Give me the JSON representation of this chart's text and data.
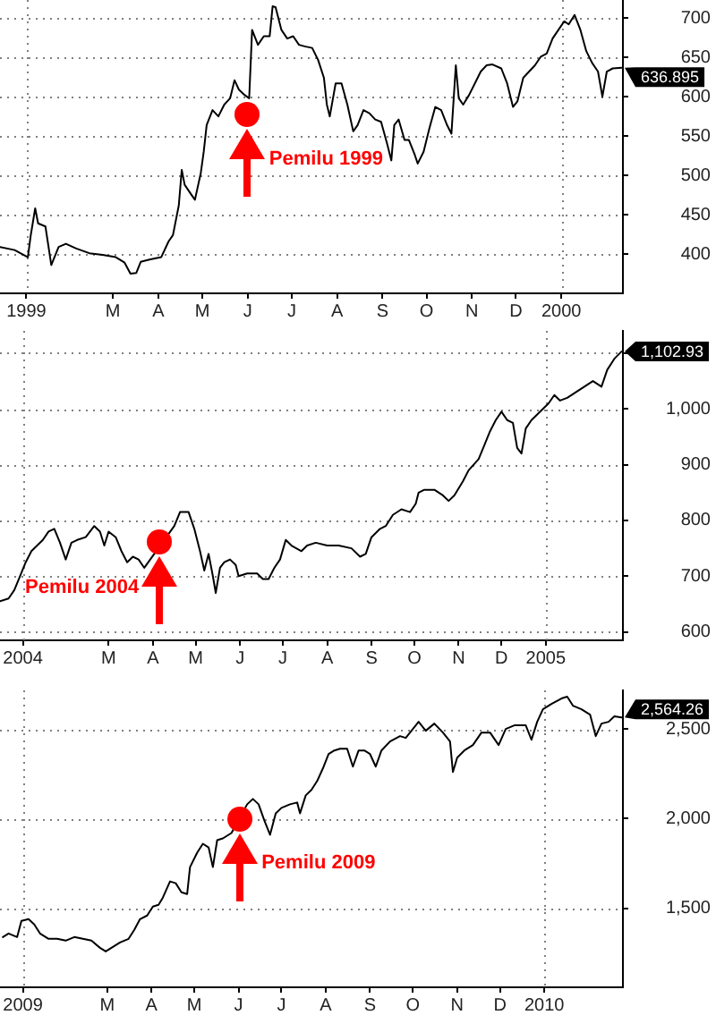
{
  "chart_data": [
    {
      "type": "line",
      "color": "#000000",
      "grid": "y",
      "x": [
        "1998-12-14",
        "1998-12-24",
        "1999-01-02",
        "1999-01-04",
        "1999-01-07",
        "1999-01-09",
        "1999-01-14",
        "1999-01-18",
        "1999-01-23",
        "1999-01-28",
        "1999-02-04",
        "1999-02-13",
        "1999-02-22",
        "1999-03-03",
        "1999-03-09",
        "1999-03-13",
        "1999-03-17",
        "1999-03-20",
        "1999-03-26",
        "1999-04-03",
        "1999-04-08",
        "1999-04-11",
        "1999-04-15",
        "1999-04-17",
        "1999-04-19",
        "1999-04-23",
        "1999-04-26",
        "1999-04-30",
        "1999-05-02",
        "1999-05-04",
        "1999-05-08",
        "1999-05-12",
        "1999-05-16",
        "1999-05-20",
        "1999-05-23",
        "1999-05-26",
        "1999-05-30",
        "1999-06-02",
        "1999-06-04",
        "1999-06-08",
        "1999-06-12",
        "1999-06-16",
        "1999-06-18",
        "1999-06-20",
        "1999-06-24",
        "1999-06-28",
        "1999-07-02",
        "1999-07-06",
        "1999-07-10",
        "1999-07-15",
        "1999-07-19",
        "1999-07-23",
        "1999-07-25",
        "1999-07-27",
        "1999-07-31",
        "1999-08-04",
        "1999-08-08",
        "1999-08-12",
        "1999-08-15",
        "1999-08-19",
        "1999-08-23",
        "1999-08-27",
        "1999-08-31",
        "1999-09-04",
        "1999-09-07",
        "1999-09-09",
        "1999-09-12",
        "1999-09-16",
        "1999-09-19",
        "1999-09-23",
        "1999-09-25",
        "1999-09-29",
        "1999-10-03",
        "1999-10-07",
        "1999-10-11",
        "1999-10-15",
        "1999-10-18",
        "1999-10-21",
        "1999-10-23",
        "1999-10-26",
        "1999-10-30",
        "1999-11-03",
        "1999-11-07",
        "1999-11-11",
        "1999-11-15",
        "1999-11-21",
        "1999-11-25",
        "1999-11-29",
        "1999-12-02",
        "1999-12-06",
        "1999-12-10",
        "1999-12-14",
        "1999-12-18",
        "1999-12-22",
        "1999-12-26",
        "1999-12-30",
        "2000-01-03",
        "2000-01-06",
        "2000-01-10",
        "2000-01-14",
        "2000-01-18",
        "2000-01-22",
        "2000-01-26",
        "2000-01-29",
        "2000-02-01",
        "2000-02-05",
        "2000-02-11"
      ],
      "values": [
        409,
        405,
        396,
        424,
        458,
        439,
        435,
        386,
        409,
        413,
        407,
        401,
        399,
        396,
        389,
        375,
        376,
        390,
        393,
        396,
        416,
        424,
        462,
        507,
        488,
        477,
        469,
        503,
        530,
        564,
        583,
        575,
        590,
        598,
        621,
        609,
        602,
        598,
        685,
        666,
        677,
        677,
        715,
        714,
        685,
        674,
        677,
        666,
        664,
        662,
        647,
        624,
        590,
        575,
        617,
        617,
        590,
        556,
        564,
        583,
        579,
        571,
        568,
        541,
        519,
        564,
        571,
        545,
        545,
        526,
        515,
        530,
        560,
        587,
        583,
        564,
        553,
        640,
        598,
        590,
        602,
        617,
        632,
        640,
        641,
        636,
        617,
        587,
        594,
        624,
        632,
        640,
        651,
        655,
        674,
        685,
        696,
        692,
        704,
        685,
        658,
        643,
        632,
        600,
        632,
        636,
        636.895
      ],
      "value_labels": [
        null,
        null,
        null,
        null,
        null,
        null,
        null,
        null,
        null,
        null,
        null,
        null,
        null,
        null,
        null,
        null,
        null,
        null,
        null,
        null,
        null,
        null,
        null,
        null,
        null,
        null,
        null,
        null,
        null,
        null,
        null,
        null,
        null,
        null,
        null,
        null,
        null,
        null,
        null,
        null,
        null,
        null,
        null,
        null,
        null,
        null,
        null,
        null,
        null,
        null,
        null,
        null,
        null,
        null,
        null,
        null,
        null,
        null,
        null,
        null,
        null,
        null,
        null,
        null,
        null,
        null,
        null,
        null,
        null,
        null,
        null,
        null,
        null,
        null,
        null,
        null,
        null,
        null,
        null,
        null,
        null,
        null,
        null,
        null,
        null,
        null,
        null,
        null,
        null,
        null,
        null,
        null,
        null,
        null,
        null,
        null,
        null,
        null,
        null,
        null,
        null,
        null,
        null,
        null,
        null,
        null,
        "636.895"
      ],
      "xlim": [
        "1998-12-14",
        "2000-02-12"
      ],
      "xticks": [
        {
          "value": "1999-01-01",
          "label": "1999"
        },
        {
          "value": "1999-03-01",
          "label": "M"
        },
        {
          "value": "1999-04-01",
          "label": "A"
        },
        {
          "value": "1999-05-01",
          "label": "M"
        },
        {
          "value": "1999-06-01",
          "label": "J"
        },
        {
          "value": "1999-07-01",
          "label": "J"
        },
        {
          "value": "1999-08-01",
          "label": "A"
        },
        {
          "value": "1999-09-01",
          "label": "S"
        },
        {
          "value": "1999-10-01",
          "label": "O"
        },
        {
          "value": "1999-11-01",
          "label": "N"
        },
        {
          "value": "1999-12-01",
          "label": "D"
        },
        {
          "value": "2000-01-01",
          "label": "2000"
        }
      ],
      "ylim": [
        350,
        723
      ],
      "yticks": [
        400,
        450,
        500,
        550,
        600,
        650,
        700
      ],
      "ref_lines": [
        {
          "axis": "x",
          "value": "1999-01-01",
          "color": "#808080",
          "line_style": "dotted"
        },
        {
          "axis": "x",
          "value": "2000-01-01",
          "color": "#808080",
          "line_style": "dotted"
        }
      ],
      "annotations": [
        {
          "text": "Pemilu 1999",
          "x": "1999-06-01",
          "y": 578
        }
      ]
    },
    {
      "type": "line",
      "color": "#000000",
      "grid": "y",
      "x": [
        "2003-12-16",
        "2003-12-22",
        "2003-12-26",
        "2003-12-30",
        "2004-01-03",
        "2004-01-07",
        "2004-01-11",
        "2004-01-15",
        "2004-01-19",
        "2004-01-23",
        "2004-01-27",
        "2004-01-31",
        "2004-02-04",
        "2004-02-08",
        "2004-02-14",
        "2004-02-20",
        "2004-02-24",
        "2004-02-27",
        "2004-03-01",
        "2004-03-06",
        "2004-03-10",
        "2004-03-14",
        "2004-03-18",
        "2004-03-22",
        "2004-03-26",
        "2004-04-16",
        "2004-04-20",
        "2004-04-26",
        "2004-04-30",
        "2004-05-04",
        "2004-05-07",
        "2004-05-10",
        "2004-05-13",
        "2004-05-15",
        "2004-05-18",
        "2004-05-21",
        "2004-05-25",
        "2004-05-29",
        "2004-05-31",
        "2004-06-06",
        "2004-06-13",
        "2004-06-17",
        "2004-06-21",
        "2004-06-25",
        "2004-06-29",
        "2004-07-03",
        "2004-07-07",
        "2004-07-14",
        "2004-07-18",
        "2004-07-24",
        "2004-08-01",
        "2004-08-09",
        "2004-08-18",
        "2004-08-24",
        "2004-08-28",
        "2004-09-01",
        "2004-09-07",
        "2004-09-11",
        "2004-09-16",
        "2004-09-22",
        "2004-09-28",
        "2004-10-02",
        "2004-10-04",
        "2004-10-08",
        "2004-10-15",
        "2004-10-21",
        "2004-10-25",
        "2004-10-29",
        "2004-11-04",
        "2004-11-08",
        "2004-11-15",
        "2004-11-19",
        "2004-11-23",
        "2004-11-27",
        "2004-12-01",
        "2004-12-05",
        "2004-12-09",
        "2004-12-12",
        "2004-12-15",
        "2004-12-18",
        "2004-12-22",
        "2004-12-26",
        "2004-12-30",
        "2005-01-03",
        "2005-01-07",
        "2005-01-11",
        "2005-01-16",
        "2005-01-22",
        "2005-01-28",
        "2005-02-03",
        "2005-02-09",
        "2005-02-13",
        "2005-02-18",
        "2005-02-23"
      ],
      "values": [
        655,
        660,
        675,
        700,
        725,
        745,
        755,
        765,
        780,
        785,
        760,
        730,
        760,
        765,
        770,
        790,
        780,
        755,
        780,
        770,
        745,
        725,
        735,
        730,
        715,
        790,
        815,
        815,
        785,
        745,
        710,
        740,
        700,
        670,
        715,
        725,
        730,
        720,
        700,
        705,
        705,
        695,
        695,
        715,
        730,
        765,
        755,
        745,
        755,
        760,
        755,
        755,
        750,
        735,
        740,
        770,
        785,
        790,
        810,
        820,
        815,
        830,
        850,
        855,
        855,
        845,
        835,
        845,
        870,
        890,
        910,
        935,
        960,
        980,
        995,
        980,
        975,
        930,
        920,
        965,
        980,
        990,
        1000,
        1010,
        1025,
        1015,
        1020,
        1030,
        1040,
        1050,
        1040,
        1070,
        1090,
        1102.93
      ],
      "value_labels": [
        null,
        null,
        null,
        null,
        null,
        null,
        null,
        null,
        null,
        null,
        null,
        null,
        null,
        null,
        null,
        null,
        null,
        null,
        null,
        null,
        null,
        null,
        null,
        null,
        null,
        null,
        null,
        null,
        null,
        null,
        null,
        null,
        null,
        null,
        null,
        null,
        null,
        null,
        null,
        null,
        null,
        null,
        null,
        null,
        null,
        null,
        null,
        null,
        null,
        null,
        null,
        null,
        null,
        null,
        null,
        null,
        null,
        null,
        null,
        null,
        null,
        null,
        null,
        null,
        null,
        null,
        null,
        null,
        null,
        null,
        null,
        null,
        null,
        null,
        null,
        null,
        null,
        null,
        null,
        null,
        null,
        null,
        null,
        null,
        null,
        null,
        null,
        null,
        null,
        null,
        null,
        null,
        null,
        "1,102.93"
      ],
      "xlim": [
        "2003-12-16",
        "2005-02-24"
      ],
      "xticks": [
        {
          "value": "2004-01-01",
          "label": "2004"
        },
        {
          "value": "2004-03-01",
          "label": "M"
        },
        {
          "value": "2004-04-01",
          "label": "A"
        },
        {
          "value": "2004-05-01",
          "label": "M"
        },
        {
          "value": "2004-06-01",
          "label": "J"
        },
        {
          "value": "2004-07-01",
          "label": "J"
        },
        {
          "value": "2004-08-01",
          "label": "A"
        },
        {
          "value": "2004-09-01",
          "label": "S"
        },
        {
          "value": "2004-10-01",
          "label": "O"
        },
        {
          "value": "2004-11-01",
          "label": "N"
        },
        {
          "value": "2004-12-01",
          "label": "D"
        },
        {
          "value": "2005-01-01",
          "label": "2005"
        }
      ],
      "ylim": [
        585,
        1140
      ],
      "yticks": [
        600,
        700,
        800,
        900,
        {
          "value": 1000,
          "label": "1,000"
        },
        {
          "value": 1100,
          "label": null
        }
      ],
      "ref_lines": [
        {
          "axis": "x",
          "value": "2004-01-01",
          "color": "#808080",
          "line_style": "dotted"
        },
        {
          "axis": "x",
          "value": "2005-01-01",
          "color": "#808080",
          "line_style": "dotted"
        }
      ],
      "annotations": [
        {
          "text": "Pemilu 2004",
          "x": "2004-04-05",
          "y": 760
        }
      ]
    },
    {
      "type": "line",
      "color": "#000000",
      "grid": "y",
      "x": [
        "2008-12-18",
        "2008-12-22",
        "2008-12-28",
        "2008-12-31",
        "2009-01-05",
        "2009-01-09",
        "2009-01-13",
        "2009-01-19",
        "2009-01-25",
        "2009-01-31",
        "2009-02-06",
        "2009-02-12",
        "2009-02-18",
        "2009-02-24",
        "2009-02-28",
        "2009-03-04",
        "2009-03-10",
        "2009-03-16",
        "2009-03-20",
        "2009-03-24",
        "2009-03-29",
        "2009-04-02",
        "2009-04-06",
        "2009-04-09",
        "2009-04-14",
        "2009-04-18",
        "2009-04-22",
        "2009-04-26",
        "2009-04-28",
        "2009-05-03",
        "2009-05-07",
        "2009-05-11",
        "2009-05-14",
        "2009-05-17",
        "2009-05-21",
        "2009-05-27",
        "2009-06-07",
        "2009-06-11",
        "2009-06-15",
        "2009-06-19",
        "2009-06-23",
        "2009-06-27",
        "2009-07-01",
        "2009-07-07",
        "2009-07-12",
        "2009-07-14",
        "2009-07-18",
        "2009-07-22",
        "2009-07-26",
        "2009-07-30",
        "2009-08-03",
        "2009-08-07",
        "2009-08-11",
        "2009-08-16",
        "2009-08-20",
        "2009-08-24",
        "2009-08-28",
        "2009-09-01",
        "2009-09-05",
        "2009-09-09",
        "2009-09-15",
        "2009-09-22",
        "2009-09-26",
        "2009-09-30",
        "2009-10-05",
        "2009-10-10",
        "2009-10-16",
        "2009-10-22",
        "2009-10-27",
        "2009-10-29",
        "2009-11-01",
        "2009-11-06",
        "2009-11-12",
        "2009-11-18",
        "2009-11-24",
        "2009-11-30",
        "2009-12-05",
        "2009-12-11",
        "2009-12-19",
        "2009-12-23",
        "2009-12-27",
        "2009-12-31",
        "2010-01-06",
        "2010-01-13",
        "2010-01-17",
        "2010-01-21",
        "2010-01-27",
        "2010-02-02",
        "2010-02-06",
        "2010-02-10",
        "2010-02-15",
        "2010-02-19",
        "2010-02-24"
      ],
      "values": [
        1340,
        1360,
        1340,
        1430,
        1440,
        1410,
        1360,
        1330,
        1330,
        1320,
        1340,
        1330,
        1320,
        1280,
        1260,
        1280,
        1310,
        1330,
        1380,
        1440,
        1460,
        1510,
        1520,
        1560,
        1650,
        1640,
        1590,
        1580,
        1730,
        1810,
        1860,
        1840,
        1730,
        1880,
        1890,
        1920,
        2080,
        2110,
        2080,
        1990,
        1910,
        2030,
        2060,
        2080,
        2090,
        2030,
        2130,
        2160,
        2210,
        2280,
        2360,
        2380,
        2390,
        2390,
        2290,
        2380,
        2380,
        2360,
        2290,
        2380,
        2430,
        2460,
        2450,
        2490,
        2540,
        2490,
        2530,
        2480,
        2430,
        2260,
        2340,
        2380,
        2410,
        2480,
        2480,
        2410,
        2500,
        2520,
        2520,
        2440,
        2540,
        2610,
        2640,
        2670,
        2680,
        2630,
        2610,
        2580,
        2460,
        2530,
        2540,
        2570,
        2564.26
      ],
      "value_labels": [
        null,
        null,
        null,
        null,
        null,
        null,
        null,
        null,
        null,
        null,
        null,
        null,
        null,
        null,
        null,
        null,
        null,
        null,
        null,
        null,
        null,
        null,
        null,
        null,
        null,
        null,
        null,
        null,
        null,
        null,
        null,
        null,
        null,
        null,
        null,
        null,
        null,
        null,
        null,
        null,
        null,
        null,
        null,
        null,
        null,
        null,
        null,
        null,
        null,
        null,
        null,
        null,
        null,
        null,
        null,
        null,
        null,
        null,
        null,
        null,
        null,
        null,
        null,
        null,
        null,
        null,
        null,
        null,
        null,
        null,
        null,
        null,
        null,
        null,
        null,
        null,
        null,
        null,
        null,
        null,
        null,
        null,
        null,
        null,
        null,
        null,
        null,
        null,
        null,
        null,
        null,
        null,
        "2,564.26"
      ],
      "xlim": [
        "2008-12-16",
        "2010-02-25"
      ],
      "xticks": [
        {
          "value": "2009-01-01",
          "label": "2009"
        },
        {
          "value": "2009-03-01",
          "label": "M"
        },
        {
          "value": "2009-04-01",
          "label": "A"
        },
        {
          "value": "2009-05-01",
          "label": "M"
        },
        {
          "value": "2009-06-01",
          "label": "J"
        },
        {
          "value": "2009-07-01",
          "label": "J"
        },
        {
          "value": "2009-08-01",
          "label": "A"
        },
        {
          "value": "2009-09-01",
          "label": "S"
        },
        {
          "value": "2009-10-01",
          "label": "O"
        },
        {
          "value": "2009-11-01",
          "label": "N"
        },
        {
          "value": "2009-12-01",
          "label": "D"
        },
        {
          "value": "2010-01-01",
          "label": "2010"
        }
      ],
      "ylim": [
        1060,
        2715
      ],
      "yticks": [
        {
          "value": 1500,
          "label": "1,500"
        },
        {
          "value": 2000,
          "label": "2,000"
        },
        {
          "value": 2500,
          "label": "2,500"
        }
      ],
      "ref_lines": [
        {
          "axis": "x",
          "value": "2009-01-01",
          "color": "#808080",
          "line_style": "dotted"
        },
        {
          "axis": "x",
          "value": "2010-01-01",
          "color": "#808080",
          "line_style": "dotted"
        }
      ],
      "annotations": [
        {
          "text": "Pemilu 2009",
          "x": "2009-06-02",
          "y": 2000
        }
      ]
    }
  ]
}
